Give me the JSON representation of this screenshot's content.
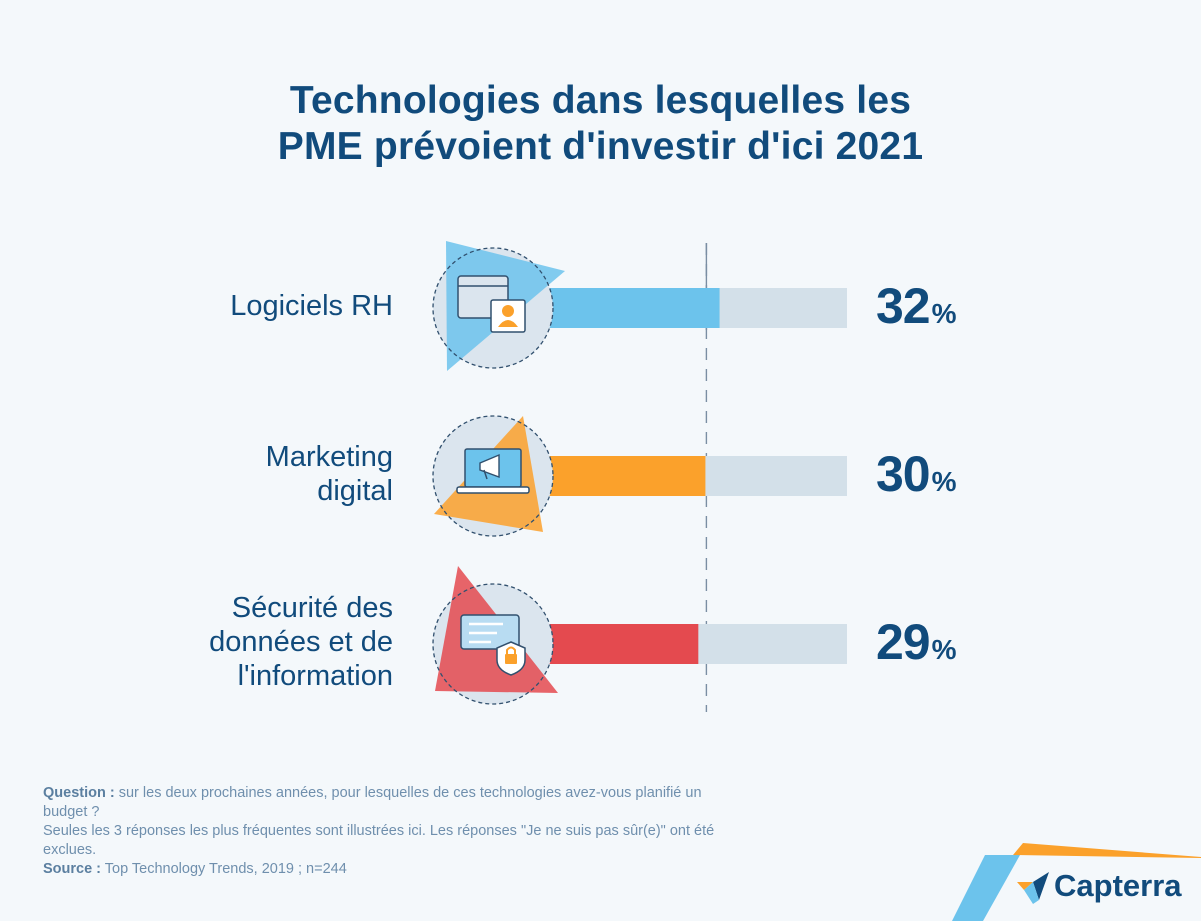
{
  "title": {
    "line1": "Technologies dans lesquelles les",
    "line2": "PME prévoient d'investir d'ici 2021"
  },
  "chart_data": {
    "type": "bar",
    "orientation": "horizontal",
    "title": "Technologies dans lesquelles les PME prévoient d'investir d'ici 2021",
    "categories": [
      "Logiciels RH",
      "Marketing digital",
      "Sécurité des données et de l'information"
    ],
    "values": [
      32,
      30,
      29
    ],
    "unit": "%",
    "xlim": [
      0,
      50
    ],
    "reference_line": 30,
    "colors": [
      "#6cc3ec",
      "#fba12b",
      "#e44a4f"
    ],
    "track_color": "#d3e0e9"
  },
  "labels": {
    "cat0": [
      "Logiciels RH"
    ],
    "cat1": [
      "Marketing",
      "digital"
    ],
    "cat2": [
      "Sécurité des",
      "données et de",
      "l'information"
    ]
  },
  "values_display": {
    "v0": "32",
    "v1": "30",
    "v2": "29",
    "pct": "%"
  },
  "icons": [
    "hr-software-icon",
    "marketing-megaphone-icon",
    "data-security-lock-icon"
  ],
  "notes": {
    "question_label": "Question :",
    "question_text": " sur les deux prochaines années, pour lesquelles de ces technologies avez-vous planifié un budget ?",
    "disclaimer": "Seules les 3 réponses les plus fréquentes sont illustrées ici. Les réponses \"Je ne suis pas sûr(e)\" ont été exclues.",
    "source_label": "Source :",
    "source_text": " Top Technology Trends, 2019 ; n=244"
  },
  "brand": {
    "name": "Capterra",
    "color": "#114b7c",
    "accent_blue": "#6cc3ec",
    "accent_orange": "#fba12b"
  }
}
